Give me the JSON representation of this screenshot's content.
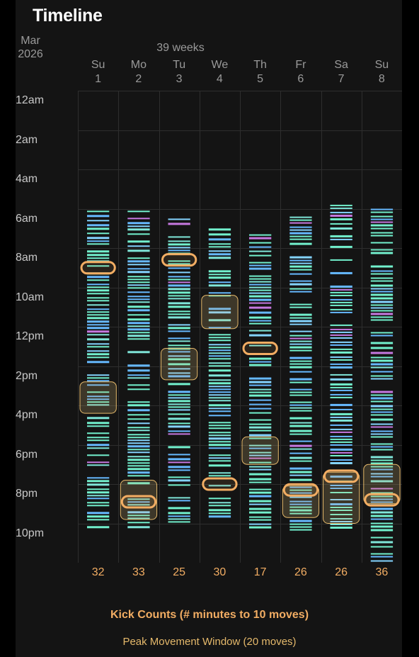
{
  "header": {
    "title": "Timeline",
    "month": "Mar",
    "year": "2026",
    "weeks": "39 weeks"
  },
  "days": [
    {
      "dow": "Su",
      "date": "1",
      "count": "32",
      "start": 6.1,
      "end": 22.3,
      "kicks": [
        9.0
      ],
      "peaks": [
        [
          14.8,
          16.4
        ]
      ]
    },
    {
      "dow": "Mo",
      "date": "2",
      "count": "33",
      "start": 6.1,
      "end": 22.3,
      "kicks": [
        20.9
      ],
      "peaks": [
        [
          19.8,
          21.8
        ]
      ]
    },
    {
      "dow": "Tu",
      "date": "3",
      "count": "25",
      "start": 6.5,
      "end": 22.0,
      "kicks": [
        8.6
      ],
      "peaks": [
        [
          13.1,
          14.7
        ]
      ]
    },
    {
      "dow": "We",
      "date": "4",
      "count": "30",
      "start": 7.0,
      "end": 21.6,
      "kicks": [
        20.0
      ],
      "peaks": [
        [
          10.4,
          12.1
        ]
      ]
    },
    {
      "dow": "Th",
      "date": "5",
      "count": "17",
      "start": 7.3,
      "end": 22.2,
      "kicks": [
        13.1
      ],
      "peaks": [
        [
          17.6,
          19.0
        ]
      ]
    },
    {
      "dow": "Fr",
      "date": "6",
      "count": "26",
      "start": 6.4,
      "end": 22.4,
      "kicks": [
        20.3
      ],
      "peaks": [
        [
          20.1,
          21.7
        ]
      ]
    },
    {
      "dow": "Sa",
      "date": "7",
      "count": "26",
      "start": 5.8,
      "end": 22.2,
      "kicks": [
        19.6
      ],
      "peaks": [
        [
          19.4,
          22.0
        ]
      ]
    },
    {
      "dow": "Su",
      "date": "8",
      "count": "36",
      "start": 6.0,
      "end": 24.0,
      "kicks": [
        20.8
      ],
      "peaks": [
        [
          19.0,
          21.0
        ]
      ]
    }
  ],
  "hour_labels": [
    {
      "hour": 0,
      "label": "12am"
    },
    {
      "hour": 2,
      "label": "2am"
    },
    {
      "hour": 4,
      "label": "4am"
    },
    {
      "hour": 6,
      "label": "6am"
    },
    {
      "hour": 8,
      "label": "8am"
    },
    {
      "hour": 10,
      "label": "10am"
    },
    {
      "hour": 12,
      "label": "12pm"
    },
    {
      "hour": 14,
      "label": "2pm"
    },
    {
      "hour": 16,
      "label": "4pm"
    },
    {
      "hour": 18,
      "label": "6pm"
    },
    {
      "hour": 20,
      "label": "8pm"
    },
    {
      "hour": 22,
      "label": "10pm"
    }
  ],
  "colors": {
    "panel": "#141414",
    "grid": "#2e2e2e",
    "kick": "#f2ad63",
    "peak_border": "#e5b96b",
    "movement": [
      "#72f0cd",
      "#7fe6d9",
      "#66b9ff",
      "#84d4ff",
      "#c678e0"
    ]
  },
  "legend": {
    "kicks": "Kick Counts (# minutes to 10 moves)",
    "peak": "Peak Movement Window (20 moves)"
  }
}
